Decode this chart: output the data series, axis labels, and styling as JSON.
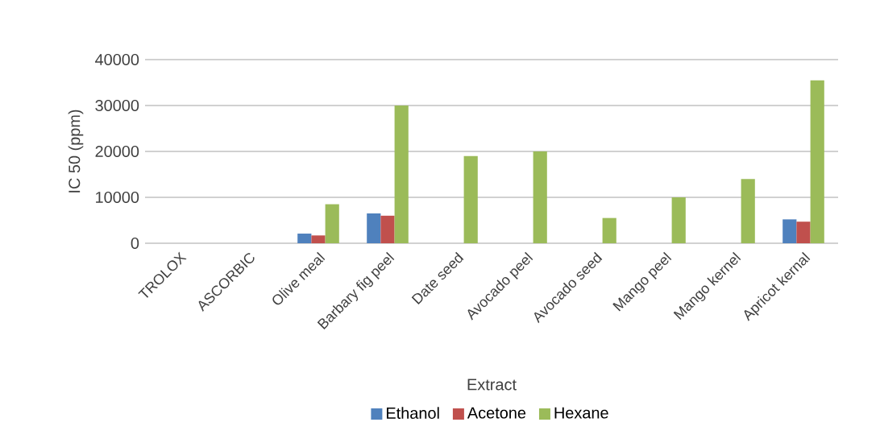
{
  "chart_data": {
    "type": "bar",
    "xlabel": "Extract",
    "ylabel": "IC 50  (ppm)",
    "categories": [
      "TROLOX",
      "ASCORBIC",
      "Olive meal",
      "Barbary fig peel",
      "Date seed",
      "Avocado peel",
      "Avocado seed",
      "Mango peel",
      "Mango kernel",
      "Apricot kernal"
    ],
    "series": [
      {
        "name": "Ethanol",
        "color": "#4f81bd",
        "values": [
          0,
          0,
          2100,
          6500,
          0,
          0,
          0,
          0,
          0,
          5200
        ]
      },
      {
        "name": "Acetone",
        "color": "#c0504d",
        "values": [
          null,
          null,
          1700,
          6000,
          0,
          0,
          0,
          0,
          0,
          4700
        ]
      },
      {
        "name": "Hexane",
        "color": "#9bbb59",
        "values": [
          null,
          null,
          8500,
          30000,
          19000,
          20000,
          5500,
          10000,
          14000,
          35500
        ]
      }
    ],
    "ylim": [
      0,
      40000
    ],
    "yticks": [
      0,
      10000,
      20000,
      30000,
      40000
    ],
    "grid": "y",
    "legend": "bottom"
  }
}
